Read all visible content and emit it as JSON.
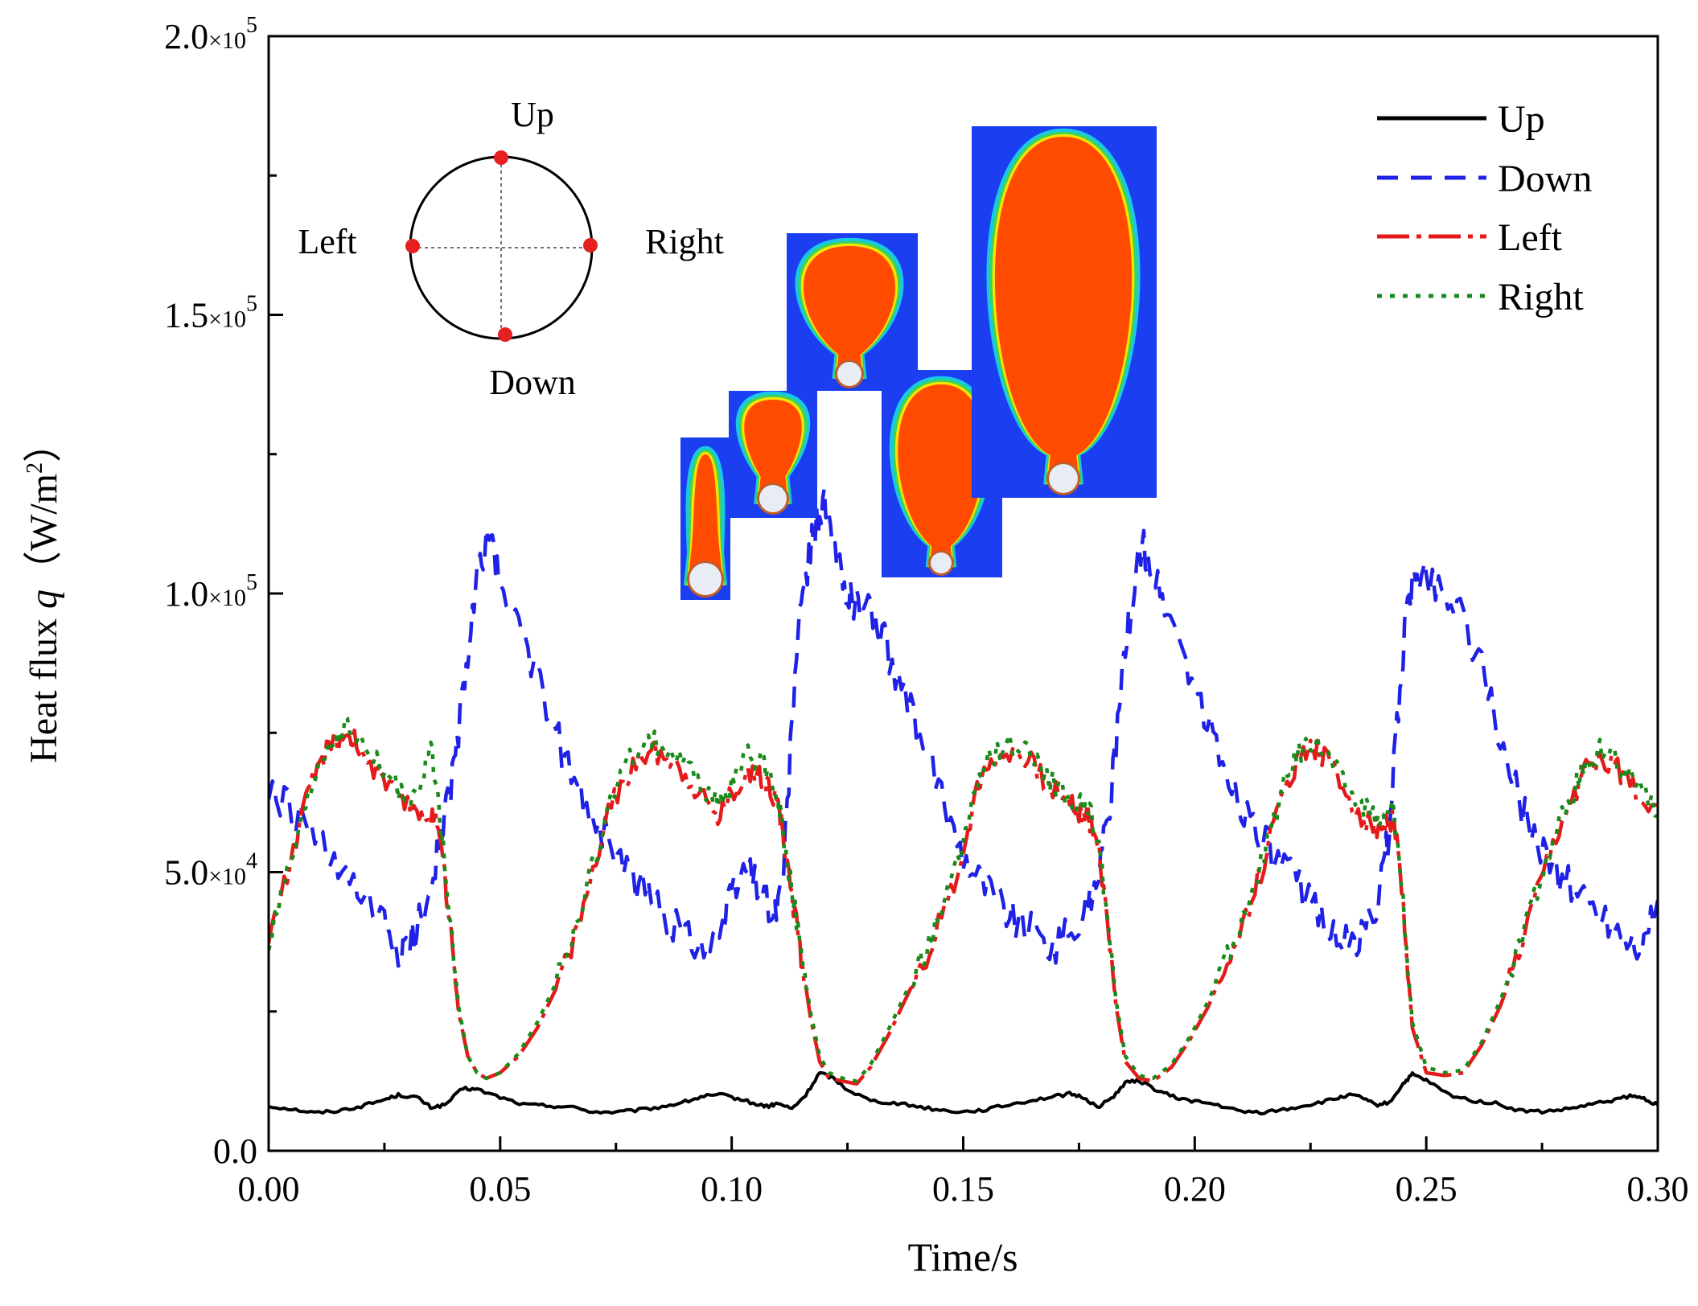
{
  "chart_data": {
    "type": "line",
    "title": "",
    "xlabel": "Time/s",
    "ylabel_main": "Heat flux ",
    "ylabel_var": "q",
    "ylabel_unit": "（W/m",
    "ylabel_sup": "2",
    "ylabel_end": "）",
    "xlim": [
      0,
      0.3
    ],
    "ylim": [
      0,
      200000
    ],
    "x_ticks": [
      {
        "value": 0.0,
        "label": "0.00"
      },
      {
        "value": 0.05,
        "label": "0.05"
      },
      {
        "value": 0.1,
        "label": "0.10"
      },
      {
        "value": 0.15,
        "label": "0.15"
      },
      {
        "value": 0.2,
        "label": "0.20"
      },
      {
        "value": 0.25,
        "label": "0.25"
      },
      {
        "value": 0.3,
        "label": "0.30"
      }
    ],
    "y_ticks": [
      {
        "value": 0,
        "mant": "0.0",
        "exp": ""
      },
      {
        "value": 50000,
        "mant": "5.0",
        "exp": "4"
      },
      {
        "value": 100000,
        "mant": "1.0",
        "exp": "5"
      },
      {
        "value": 150000,
        "mant": "1.5",
        "exp": "5"
      },
      {
        "value": 200000,
        "mant": "2.0",
        "exp": "5"
      }
    ],
    "tick_times": "×10",
    "series": [
      {
        "name": "Up",
        "color": "#000000",
        "dash": "",
        "x": [
          0.0,
          0.005,
          0.01,
          0.015,
          0.02,
          0.025,
          0.028,
          0.032,
          0.035,
          0.038,
          0.042,
          0.045,
          0.05,
          0.055,
          0.06,
          0.065,
          0.07,
          0.075,
          0.08,
          0.085,
          0.09,
          0.094,
          0.098,
          0.102,
          0.106,
          0.108,
          0.11,
          0.113,
          0.116,
          0.119,
          0.122,
          0.125,
          0.13,
          0.135,
          0.14,
          0.145,
          0.15,
          0.155,
          0.16,
          0.165,
          0.17,
          0.173,
          0.176,
          0.179,
          0.182,
          0.185,
          0.188,
          0.192,
          0.196,
          0.2,
          0.205,
          0.21,
          0.215,
          0.22,
          0.225,
          0.23,
          0.233,
          0.236,
          0.239,
          0.242,
          0.245,
          0.247,
          0.25,
          0.255,
          0.26,
          0.265,
          0.27,
          0.275,
          0.28,
          0.285,
          0.29,
          0.294,
          0.297,
          0.3
        ],
        "y": [
          8000,
          7500,
          6800,
          7200,
          8000,
          9200,
          10000,
          9600,
          7800,
          8200,
          11200,
          11000,
          9600,
          8300,
          8100,
          7900,
          7000,
          6900,
          7300,
          7900,
          8800,
          9800,
          10000,
          9200,
          8200,
          8000,
          8500,
          7500,
          10000,
          14000,
          13000,
          11000,
          9000,
          8600,
          8000,
          7300,
          7000,
          7400,
          8300,
          9100,
          9800,
          10200,
          9600,
          7800,
          9400,
          12200,
          12600,
          10800,
          9500,
          8900,
          8200,
          7000,
          6900,
          7500,
          8300,
          9200,
          10000,
          9600,
          8200,
          8600,
          12000,
          13700,
          12600,
          10000,
          9000,
          8500,
          7200,
          7000,
          7400,
          8200,
          9000,
          9800,
          9400,
          8200
        ]
      },
      {
        "name": "Down",
        "color": "#1f22e6",
        "dash": "26,16",
        "x": [
          0.0,
          0.005,
          0.01,
          0.015,
          0.02,
          0.025,
          0.028,
          0.03,
          0.033,
          0.036,
          0.038,
          0.04,
          0.042,
          0.044,
          0.046,
          0.048,
          0.05,
          0.054,
          0.058,
          0.062,
          0.066,
          0.07,
          0.074,
          0.078,
          0.082,
          0.086,
          0.09,
          0.094,
          0.098,
          0.1,
          0.103,
          0.106,
          0.109,
          0.111,
          0.112,
          0.114,
          0.116,
          0.118,
          0.12,
          0.122,
          0.124,
          0.126,
          0.128,
          0.131,
          0.134,
          0.138,
          0.142,
          0.146,
          0.15,
          0.154,
          0.158,
          0.162,
          0.166,
          0.17,
          0.174,
          0.177,
          0.179,
          0.181,
          0.183,
          0.185,
          0.187,
          0.189,
          0.191,
          0.194,
          0.198,
          0.202,
          0.206,
          0.21,
          0.214,
          0.218,
          0.222,
          0.226,
          0.23,
          0.234,
          0.237,
          0.24,
          0.242,
          0.244,
          0.246,
          0.248,
          0.25,
          0.254,
          0.258,
          0.262,
          0.266,
          0.27,
          0.274,
          0.278,
          0.282,
          0.286,
          0.29,
          0.294,
          0.297,
          0.3
        ],
        "y": [
          64000,
          61000,
          56000,
          50000,
          45000,
          40000,
          35000,
          36000,
          42000,
          52000,
          60000,
          68000,
          82000,
          96000,
          107000,
          111000,
          100000,
          96000,
          84000,
          75000,
          66000,
          60000,
          55000,
          49000,
          46000,
          42000,
          39000,
          37000,
          40000,
          46000,
          51000,
          48000,
          42000,
          48000,
          62000,
          90000,
          103000,
          112000,
          116000,
          108000,
          102000,
          99000,
          98000,
          96000,
          89000,
          80000,
          71000,
          62000,
          54000,
          49000,
          45000,
          41000,
          39000,
          37000,
          40000,
          44000,
          50000,
          58000,
          72000,
          90000,
          103000,
          108000,
          103000,
          97000,
          88000,
          78000,
          69000,
          62000,
          57000,
          52000,
          48000,
          44000,
          39000,
          36000,
          40000,
          46000,
          58000,
          80000,
          98000,
          104000,
          103000,
          100000,
          97000,
          86000,
          74000,
          63000,
          56000,
          50000,
          47000,
          44000,
          41000,
          38000,
          37000,
          45000
        ]
      },
      {
        "name": "Left",
        "color": "#e61a1a",
        "dash": "40,9,6,9",
        "x": [
          0.0,
          0.004,
          0.008,
          0.011,
          0.014,
          0.017,
          0.02,
          0.024,
          0.028,
          0.032,
          0.035,
          0.037,
          0.039,
          0.041,
          0.043,
          0.045,
          0.047,
          0.05,
          0.054,
          0.058,
          0.062,
          0.066,
          0.07,
          0.074,
          0.078,
          0.082,
          0.086,
          0.09,
          0.094,
          0.097,
          0.1,
          0.103,
          0.106,
          0.108,
          0.11,
          0.111,
          0.113,
          0.115,
          0.117,
          0.119,
          0.121,
          0.124,
          0.127,
          0.13,
          0.134,
          0.138,
          0.142,
          0.146,
          0.15,
          0.153,
          0.156,
          0.16,
          0.164,
          0.168,
          0.172,
          0.175,
          0.177,
          0.179,
          0.181,
          0.183,
          0.185,
          0.188,
          0.191,
          0.195,
          0.199,
          0.203,
          0.207,
          0.211,
          0.215,
          0.219,
          0.222,
          0.225,
          0.228,
          0.232,
          0.236,
          0.239,
          0.241,
          0.243,
          0.245,
          0.247,
          0.25,
          0.254,
          0.258,
          0.262,
          0.266,
          0.27,
          0.274,
          0.278,
          0.282,
          0.285,
          0.288,
          0.292,
          0.296,
          0.3
        ],
        "y": [
          38000,
          50000,
          62000,
          70000,
          73000,
          75000,
          72000,
          67000,
          63000,
          61000,
          60000,
          58000,
          42000,
          25000,
          17000,
          14000,
          13000,
          14000,
          17000,
          22000,
          29000,
          38000,
          50000,
          62000,
          68000,
          72000,
          71000,
          68000,
          63000,
          60000,
          64000,
          68000,
          67000,
          66000,
          62000,
          57000,
          46000,
          35000,
          24000,
          16000,
          13000,
          12500,
          12000,
          15000,
          21000,
          28000,
          35000,
          43000,
          54000,
          65000,
          70000,
          72000,
          70000,
          66000,
          63000,
          61000,
          60000,
          56000,
          42000,
          26000,
          16000,
          13000,
          12500,
          15000,
          20000,
          26000,
          34000,
          42000,
          52000,
          64000,
          70000,
          73000,
          71000,
          65000,
          60000,
          58000,
          58000,
          60000,
          44000,
          22000,
          14000,
          13500,
          14000,
          19000,
          26000,
          35000,
          46000,
          56000,
          64000,
          69000,
          71000,
          68000,
          64000,
          62000
        ]
      },
      {
        "name": "Right",
        "color": "#1a8a1a",
        "dash": "6,10",
        "x": [
          0.0,
          0.004,
          0.008,
          0.011,
          0.014,
          0.017,
          0.02,
          0.024,
          0.028,
          0.032,
          0.035,
          0.037,
          0.039,
          0.041,
          0.043,
          0.045,
          0.047,
          0.05,
          0.054,
          0.058,
          0.062,
          0.066,
          0.07,
          0.074,
          0.078,
          0.082,
          0.086,
          0.09,
          0.094,
          0.097,
          0.1,
          0.103,
          0.106,
          0.108,
          0.11,
          0.111,
          0.113,
          0.115,
          0.117,
          0.119,
          0.121,
          0.124,
          0.127,
          0.13,
          0.134,
          0.138,
          0.142,
          0.146,
          0.15,
          0.153,
          0.156,
          0.16,
          0.164,
          0.168,
          0.172,
          0.175,
          0.177,
          0.179,
          0.181,
          0.183,
          0.185,
          0.188,
          0.191,
          0.195,
          0.199,
          0.203,
          0.207,
          0.211,
          0.215,
          0.219,
          0.222,
          0.225,
          0.228,
          0.232,
          0.236,
          0.239,
          0.241,
          0.243,
          0.245,
          0.247,
          0.25,
          0.254,
          0.258,
          0.262,
          0.266,
          0.27,
          0.274,
          0.278,
          0.282,
          0.285,
          0.288,
          0.292,
          0.296,
          0.3
        ],
        "y": [
          37000,
          49000,
          61000,
          70000,
          74000,
          76000,
          73000,
          69000,
          65000,
          62000,
          73000,
          60000,
          44000,
          26000,
          17000,
          14000,
          13000,
          14000,
          17500,
          23000,
          30000,
          39000,
          51000,
          63000,
          70000,
          74000,
          72000,
          69000,
          65000,
          62000,
          66000,
          71000,
          70000,
          68000,
          63000,
          58000,
          47000,
          36000,
          25000,
          17000,
          14000,
          13000,
          12500,
          15500,
          22000,
          29000,
          36000,
          44000,
          55000,
          66000,
          71000,
          73000,
          71000,
          67000,
          64000,
          62000,
          61000,
          57000,
          43000,
          27000,
          17000,
          13500,
          13000,
          15500,
          20500,
          27000,
          35000,
          43000,
          53000,
          65000,
          71000,
          74000,
          72000,
          66000,
          62000,
          60000,
          59000,
          62000,
          45000,
          23000,
          15000,
          14000,
          14500,
          19500,
          27000,
          36000,
          47000,
          57000,
          65000,
          70000,
          72000,
          69000,
          65000,
          60000
        ]
      }
    ],
    "legend": [
      {
        "name": "Up"
      },
      {
        "name": "Down"
      },
      {
        "name": "Left"
      },
      {
        "name": "Right"
      }
    ],
    "legend_position": "top-right",
    "inset": {
      "labels": {
        "up": "Up",
        "down": "Down",
        "left": "Left",
        "right": "Right"
      },
      "marker_color": "#e62020"
    },
    "bubble_colors": {
      "background": "#1a3ef0",
      "vapor": "#ff4b00",
      "rim_inner": "#f5e400",
      "rim_mid": "#3bd35a",
      "rim_outer": "#19c8e6",
      "wire": "#e8ecf4"
    }
  }
}
